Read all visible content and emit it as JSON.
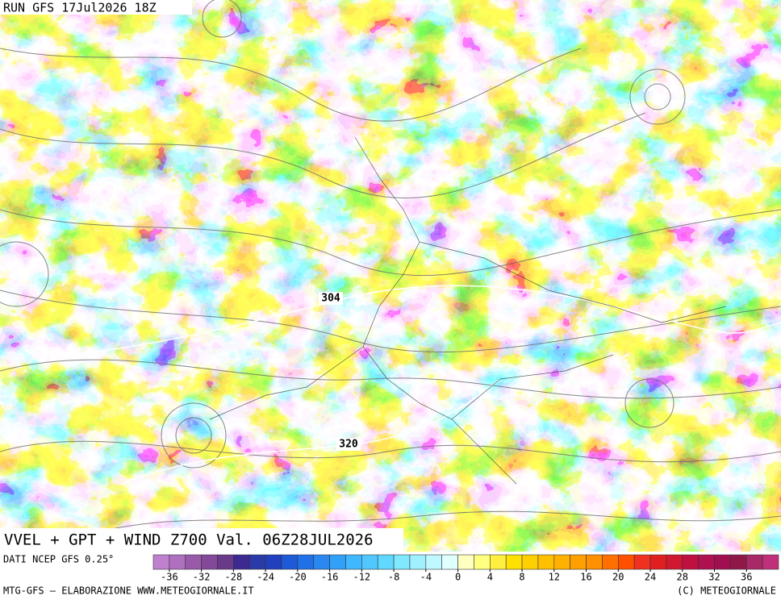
{
  "header": {
    "run": "RUN GFS 17Jul2026 18Z"
  },
  "map": {
    "title": "VVEL + GPT + WIND Z700 Val. 06Z28JUL2026",
    "contour_labels": [
      "304",
      "320"
    ]
  },
  "colorbar": {
    "source": "DATI NCEP GFS 0.25°",
    "colors": [
      "#c080d0",
      "#b070c0",
      "#9a5aaa",
      "#84489a",
      "#6a3a8a",
      "#3c2a90",
      "#2a3aa8",
      "#2040c0",
      "#1e5ad8",
      "#2070e8",
      "#2a88f0",
      "#30a0f8",
      "#40b8ff",
      "#50c8ff",
      "#60d8ff",
      "#80e8ff",
      "#a0f0ff",
      "#c0f8ff",
      "#e0ffff",
      "#ffffc0",
      "#ffff80",
      "#fff040",
      "#ffe000",
      "#ffd000",
      "#ffc000",
      "#ffb000",
      "#ffa000",
      "#ff9000",
      "#ff7000",
      "#ff5000",
      "#f03020",
      "#e02020",
      "#d01830",
      "#c01040",
      "#b01050",
      "#a01050",
      "#901848",
      "#a82868",
      "#c0307a"
    ],
    "ticks": [
      -36,
      -32,
      -28,
      -24,
      -20,
      -16,
      -12,
      -8,
      -4,
      0,
      4,
      8,
      12,
      16,
      20,
      24,
      28,
      32,
      36
    ]
  },
  "footer": {
    "left": "MTG-GFS – ELABORAZIONE WWW.METEOGIORNALE.IT",
    "right": "(C) METEOGIORNALE"
  }
}
